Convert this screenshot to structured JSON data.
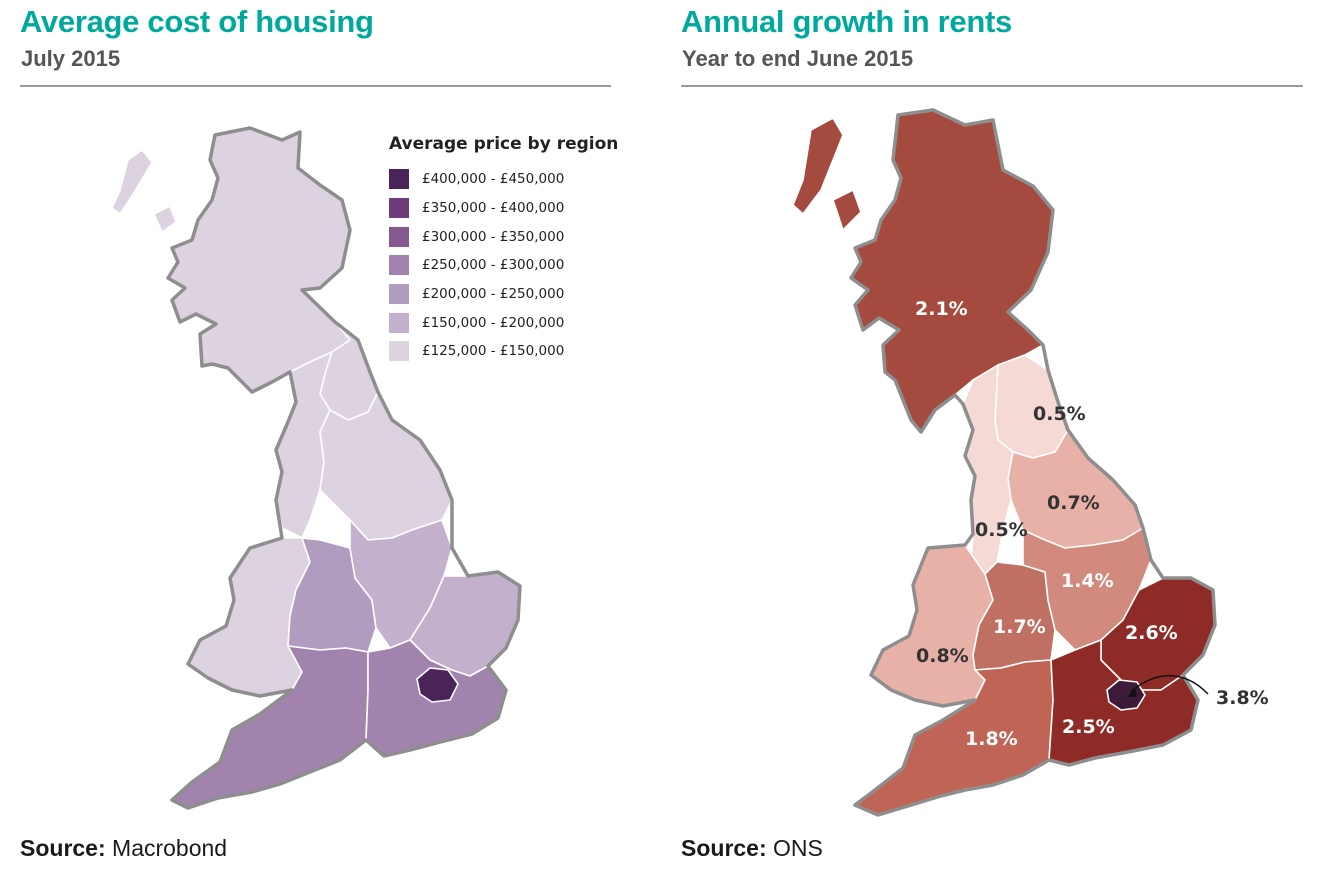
{
  "housing": {
    "title": "Average cost of housing",
    "subtitle": "July 2015",
    "legend_title": "Average price by region",
    "legend": [
      {
        "label": "£400,000 - £450,000",
        "color": "#4a2458"
      },
      {
        "label": "£350,000 - £400,000",
        "color": "#6c3d78"
      },
      {
        "label": "£300,000 - £350,000",
        "color": "#86598f"
      },
      {
        "label": "£250,000 - £300,000",
        "color": "#a283ae"
      },
      {
        "label": "£200,000 - £250,000",
        "color": "#b09cbf"
      },
      {
        "label": "£150,000 - £200,000",
        "color": "#c3b0cc"
      },
      {
        "label": "£125,000 - £150,000",
        "color": "#ddd2df"
      }
    ],
    "source_label": "Source:",
    "source": "Macrobond"
  },
  "rents": {
    "title": "Annual growth in rents",
    "subtitle": "Year to end June 2015",
    "regions": {
      "scotland": "2.1%",
      "north_east": "0.5%",
      "yorkshire": "0.7%",
      "north_west": "0.5%",
      "east_midlands": "1.4%",
      "west_midlands": "1.7%",
      "wales": "0.8%",
      "east": "2.6%",
      "london": "3.8%",
      "south_east": "2.5%",
      "south_west": "1.8%"
    },
    "source_label": "Source:",
    "source": "ONS"
  }
}
